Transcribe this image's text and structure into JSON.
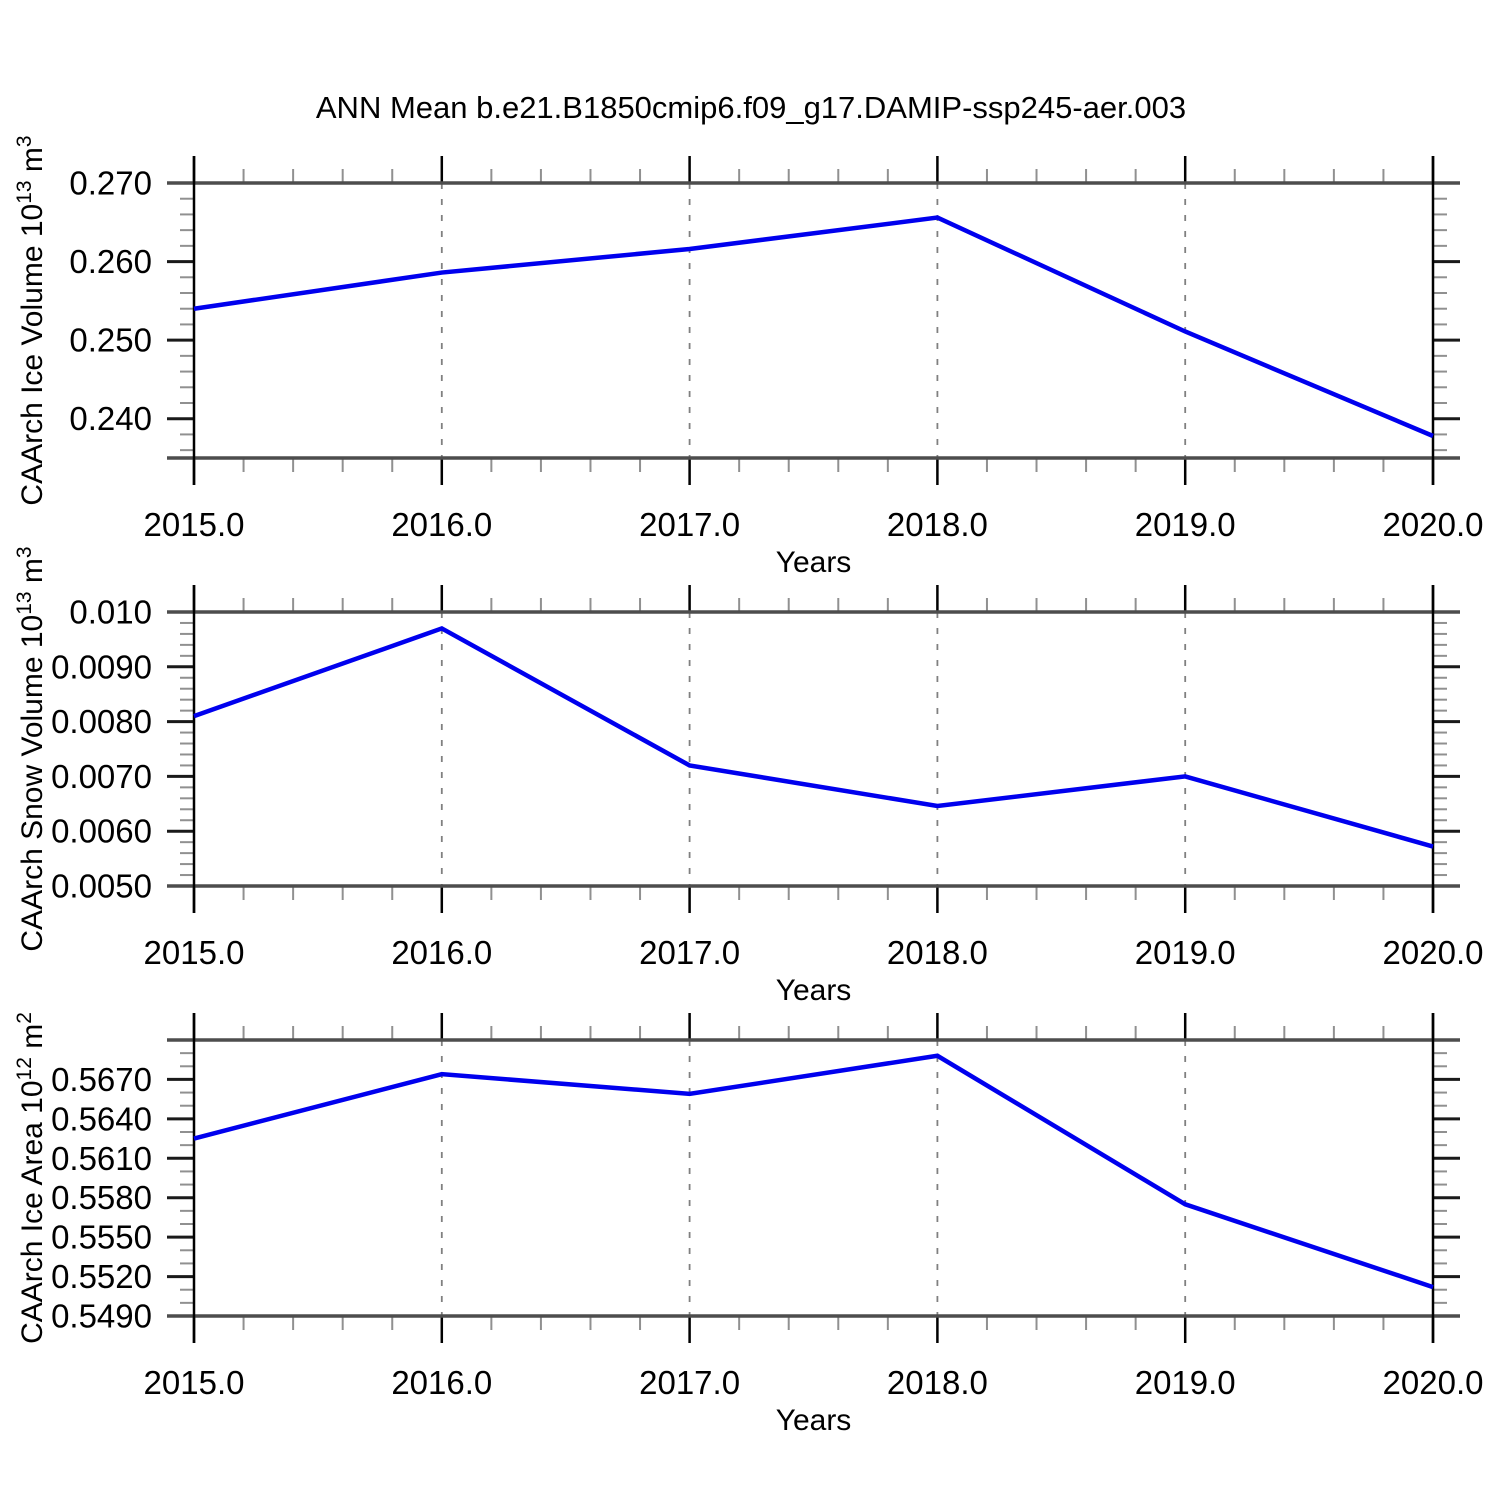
{
  "title": "ANN Mean b.e21.B1850cmip6.f09_g17.DAMIP-ssp245-aer.003",
  "style": {
    "line_color": "#0000EE",
    "grid_color": "#808080",
    "border_color": "#4D4D4D",
    "axis_color": "#000000",
    "major_tick_color": "#1A1A1A",
    "minor_tick_color": "#909090",
    "background": "#FFFFFF"
  },
  "chart_data": [
    {
      "id": "ice-volume",
      "type": "line",
      "x": [
        2015,
        2016,
        2017,
        2018,
        2019,
        2020
      ],
      "values": [
        0.254,
        0.2586,
        0.2616,
        0.2656,
        0.2511,
        0.2378
      ],
      "xlabel": "Years",
      "ylabel": "CAArch Ice Volume 10^13 m^3",
      "ylabel_segments": [
        {
          "t": "CAArch Ice Volume 10"
        },
        {
          "t": "13",
          "sup": true
        },
        {
          "t": " m"
        },
        {
          "t": "3",
          "sup": true
        }
      ],
      "xlim": [
        2015.0,
        2020.0
      ],
      "ylim": [
        0.235,
        0.27
      ],
      "x_major_ticks": [
        2015,
        2016,
        2017,
        2018,
        2019,
        2020
      ],
      "x_tick_labels": [
        "2015.0",
        "2016.0",
        "2017.0",
        "2018.0",
        "2019.0",
        "2020.0"
      ],
      "x_minor_step": 0.2,
      "y_ticks": [
        {
          "value": 0.27,
          "label": "0.270"
        },
        {
          "value": 0.26,
          "label": "0.260"
        },
        {
          "value": 0.25,
          "label": "0.250"
        },
        {
          "value": 0.24,
          "label": "0.240"
        }
      ],
      "y_minor_step": 0.002,
      "grid_x": [
        2016,
        2017,
        2018,
        2019
      ],
      "grid_on": true,
      "legend": "none"
    },
    {
      "id": "snow-volume",
      "type": "line",
      "x": [
        2015,
        2016,
        2017,
        2018,
        2019,
        2020
      ],
      "values": [
        0.0081,
        0.0097,
        0.0072,
        0.00646,
        0.007,
        0.00572
      ],
      "xlabel": "Years",
      "ylabel": "CAArch Snow Volume 10^13 m^3",
      "ylabel_segments": [
        {
          "t": "CAArch Snow Volume 10"
        },
        {
          "t": "13",
          "sup": true
        },
        {
          "t": " m"
        },
        {
          "t": "3",
          "sup": true
        }
      ],
      "xlim": [
        2015.0,
        2020.0
      ],
      "ylim": [
        0.005,
        0.01
      ],
      "x_major_ticks": [
        2015,
        2016,
        2017,
        2018,
        2019,
        2020
      ],
      "x_tick_labels": [
        "2015.0",
        "2016.0",
        "2017.0",
        "2018.0",
        "2019.0",
        "2020.0"
      ],
      "x_minor_step": 0.2,
      "y_ticks": [
        {
          "value": 0.01,
          "label": "0.010"
        },
        {
          "value": 0.009,
          "label": "0.0090"
        },
        {
          "value": 0.008,
          "label": "0.0080"
        },
        {
          "value": 0.007,
          "label": "0.0070"
        },
        {
          "value": 0.006,
          "label": "0.0060"
        },
        {
          "value": 0.005,
          "label": "0.0050"
        }
      ],
      "y_minor_step": 0.0002,
      "grid_x": [
        2016,
        2017,
        2018,
        2019
      ],
      "grid_on": true,
      "legend": "none"
    },
    {
      "id": "ice-area",
      "type": "line",
      "x": [
        2015,
        2016,
        2017,
        2018,
        2019,
        2020
      ],
      "values": [
        0.5625,
        0.5674,
        0.5659,
        0.5688,
        0.5575,
        0.5512
      ],
      "xlabel": "Years",
      "ylabel": "CAArch Ice Area 10^12 m^2",
      "ylabel_segments": [
        {
          "t": "CAArch Ice Area 10"
        },
        {
          "t": "12",
          "sup": true
        },
        {
          "t": " m"
        },
        {
          "t": "2",
          "sup": true
        }
      ],
      "xlim": [
        2015.0,
        2020.0
      ],
      "ylim": [
        0.549,
        0.57
      ],
      "x_major_ticks": [
        2015,
        2016,
        2017,
        2018,
        2019,
        2020
      ],
      "x_tick_labels": [
        "2015.0",
        "2016.0",
        "2017.0",
        "2018.0",
        "2019.0",
        "2020.0"
      ],
      "x_minor_step": 0.2,
      "y_ticks": [
        {
          "value": 0.57,
          "label": ""
        },
        {
          "value": 0.567,
          "label": "0.5670"
        },
        {
          "value": 0.564,
          "label": "0.5640"
        },
        {
          "value": 0.561,
          "label": "0.5610"
        },
        {
          "value": 0.558,
          "label": "0.5580"
        },
        {
          "value": 0.555,
          "label": "0.5550"
        },
        {
          "value": 0.552,
          "label": "0.5520"
        },
        {
          "value": 0.549,
          "label": "0.5490"
        }
      ],
      "y_minor_step": 0.001,
      "grid_x": [
        2016,
        2017,
        2018,
        2019
      ],
      "grid_on": true,
      "legend": "none"
    }
  ]
}
